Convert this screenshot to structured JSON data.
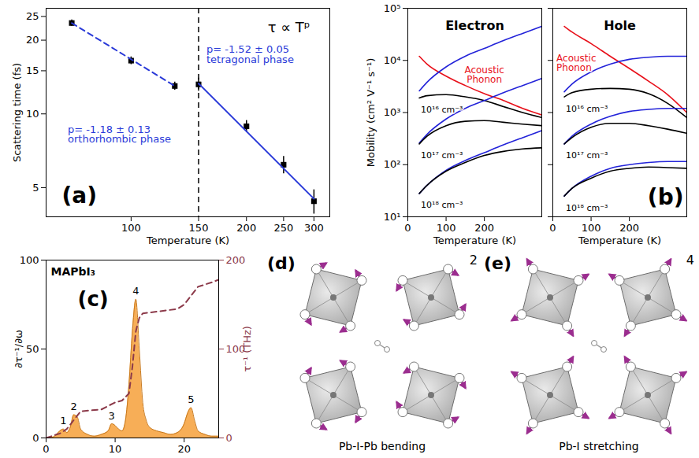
{
  "chart_data": [
    {
      "type": "scatter",
      "panel_label": "(a)",
      "formula": "τ ∝ Tᵖ",
      "xlabel": "Temperature (K)",
      "ylabel": "Scattering time (fs)",
      "log": true,
      "xlim": [
        60,
        330
      ],
      "xticks": [
        100,
        150,
        200,
        250,
        300
      ],
      "ylim": [
        3.8,
        27
      ],
      "yticks": [
        5,
        10,
        15,
        20,
        25
      ],
      "vline": {
        "x": 150,
        "line_style": "dashed",
        "color": "#000000"
      },
      "series": [
        {
          "color": "#000000",
          "marker": "square",
          "x": [
            70,
            100,
            130
          ],
          "values": [
            23.5,
            16.5,
            13.0
          ],
          "errors": [
            0.7,
            0.6,
            0.5
          ]
        },
        {
          "color": "#000000",
          "marker": "square",
          "x": [
            150,
            200,
            250,
            300
          ],
          "values": [
            13.2,
            8.9,
            6.2,
            4.4
          ],
          "errors": [
            0.8,
            0.5,
            0.5,
            0.5
          ]
        },
        {
          "type": "line",
          "color": "#2a3ad8",
          "line_style": "dashed",
          "x": [
            70,
            130
          ],
          "values": [
            23.5,
            13.0
          ],
          "label": [
            "p= -1.18 ± 0.13",
            "orthorhombic phase"
          ]
        },
        {
          "type": "line",
          "color": "#2a3ad8",
          "line_style": "solid",
          "x": [
            150,
            300
          ],
          "values": [
            13.3,
            4.5
          ],
          "label": [
            "p= -1.52 ± 0.05",
            "tetragonal phase"
          ]
        }
      ]
    },
    {
      "type": "line",
      "panel_label": "(b)",
      "xlabel": "Temperature (K)",
      "ylabel": "Mobility (cm² V⁻¹ s⁻¹)",
      "log": "y",
      "xlim": [
        0,
        350
      ],
      "xticks": [
        0,
        100,
        200
      ],
      "ylim": [
        10,
        100000
      ],
      "yticks": [
        {
          "value": 10,
          "label": "10¹"
        },
        {
          "value": 100,
          "label": "10²"
        },
        {
          "value": 1000,
          "label": "10³"
        },
        {
          "value": 10000,
          "label": "10⁴"
        },
        {
          "value": 100000,
          "label": "10⁵"
        }
      ],
      "x": [
        30,
        50,
        100,
        150,
        200,
        250,
        300,
        350
      ],
      "panels": [
        {
          "title": "Electron",
          "series": [
            {
              "name": "Acoustic Phonon",
              "color": "#e8101a",
              "values": [
                12000,
                8500,
                5000,
                3300,
                2300,
                1700,
                1200,
                900
              ]
            },
            {
              "name": "10¹⁶ cm⁻³",
              "lines": [
                {
                  "color": "#2323d9",
                  "values": [
                    2600,
                    3800,
                    7500,
                    12000,
                    17000,
                    24000,
                    33000,
                    45000
                  ]
                },
                {
                  "color": "#000000",
                  "values": [
                    1900,
                    2100,
                    2200,
                    2000,
                    1700,
                    1300,
                    1000,
                    800
                  ]
                }
              ]
            },
            {
              "name": "10¹⁷ cm⁻³",
              "lines": [
                {
                  "color": "#2323d9",
                  "values": [
                    260,
                    380,
                    750,
                    1200,
                    1700,
                    2400,
                    3300,
                    4500
                  ]
                },
                {
                  "color": "#000000",
                  "values": [
                    250,
                    350,
                    560,
                    680,
                    700,
                    650,
                    600,
                    560
                  ]
                }
              ]
            },
            {
              "name": "10¹⁸ cm⁻³",
              "lines": [
                {
                  "color": "#2323d9",
                  "values": [
                    28,
                    40,
                    78,
                    120,
                    170,
                    240,
                    330,
                    450
                  ]
                },
                {
                  "color": "#000000",
                  "values": [
                    28,
                    40,
                    75,
                    110,
                    150,
                    180,
                    200,
                    210
                  ]
                }
              ]
            }
          ]
        },
        {
          "title": "Hole",
          "series": [
            {
              "name": "Acoustic Phonon",
              "color": "#e8101a",
              "values": [
                45000,
                35000,
                21000,
                12000,
                7000,
                4000,
                2200,
                1000
              ]
            },
            {
              "name": "10¹⁶ cm⁻³",
              "lines": [
                {
                  "color": "#2323d9",
                  "values": [
                    2500,
                    3500,
                    6000,
                    8500,
                    10500,
                    11500,
                    12000,
                    12000
                  ]
                },
                {
                  "color": "#000000",
                  "values": [
                    2000,
                    2400,
                    2800,
                    2900,
                    2800,
                    2300,
                    1500,
                    800
                  ]
                }
              ]
            },
            {
              "name": "10¹⁷ cm⁻³",
              "lines": [
                {
                  "color": "#2323d9",
                  "values": [
                    250,
                    350,
                    600,
                    850,
                    1050,
                    1150,
                    1200,
                    1200
                  ]
                },
                {
                  "color": "#000000",
                  "values": [
                    250,
                    330,
                    520,
                    620,
                    620,
                    560,
                    480,
                    400
                  ]
                }
              ]
            },
            {
              "name": "10¹⁸ cm⁻³",
              "lines": [
                {
                  "color": "#2323d9",
                  "values": [
                    25,
                    35,
                    60,
                    85,
                    100,
                    110,
                    115,
                    115
                  ]
                },
                {
                  "color": "#000000",
                  "values": [
                    25,
                    35,
                    55,
                    75,
                    85,
                    90,
                    88,
                    85
                  ]
                }
              ]
            }
          ]
        }
      ]
    },
    {
      "type": "area",
      "panel_label": "(c)",
      "title": "MAPbI₃",
      "ylabel": "∂τ⁻¹/∂ω",
      "y2label": "τ⁻¹ (THz)",
      "xlim": [
        0,
        25
      ],
      "xticks": [
        0,
        10,
        20
      ],
      "ylim": [
        0,
        100
      ],
      "yticks": [
        0,
        50,
        100
      ],
      "y2lim": [
        0,
        200
      ],
      "y2ticks": [
        0,
        100,
        200
      ],
      "peak_labels": [
        "1",
        "2",
        "3",
        "4",
        "5"
      ],
      "series": [
        {
          "type": "area",
          "color": "#f6a545",
          "x": [
            0,
            1,
            1.5,
            2,
            2.5,
            3,
            3.5,
            4,
            4.5,
            5,
            6,
            7,
            8,
            9,
            9.5,
            10,
            10.5,
            11,
            11.5,
            12,
            12.5,
            13,
            13.5,
            14,
            14.5,
            15,
            16,
            17,
            18,
            19,
            20,
            20.5,
            21,
            21.5,
            22,
            23,
            24,
            25
          ],
          "values": [
            0,
            0.5,
            2,
            4,
            5,
            3,
            6,
            13,
            12,
            5,
            2,
            1,
            2,
            4,
            8,
            7,
            5,
            4,
            10,
            30,
            60,
            78,
            50,
            20,
            10,
            6,
            4,
            3,
            2,
            3,
            8,
            14,
            17,
            10,
            4,
            2,
            1,
            1
          ]
        },
        {
          "type": "line",
          "axis": "y2",
          "color": "#8c3a4a",
          "line_style": "dashed",
          "x": [
            0,
            2,
            3,
            4,
            5,
            8,
            10,
            11,
            12,
            12.5,
            13,
            13.5,
            14,
            16,
            19,
            20,
            21,
            22,
            24,
            25
          ],
          "values": [
            0,
            5,
            10,
            20,
            30,
            32,
            40,
            42,
            50,
            80,
            120,
            135,
            140,
            142,
            145,
            150,
            160,
            170,
            175,
            178
          ]
        }
      ]
    }
  ],
  "diagrams": [
    {
      "panel_label": "(d)",
      "mode": "2",
      "caption": "Pb-I-Pb bending"
    },
    {
      "panel_label": "(e)",
      "mode": "4",
      "caption": "Pb-I stretching"
    }
  ]
}
